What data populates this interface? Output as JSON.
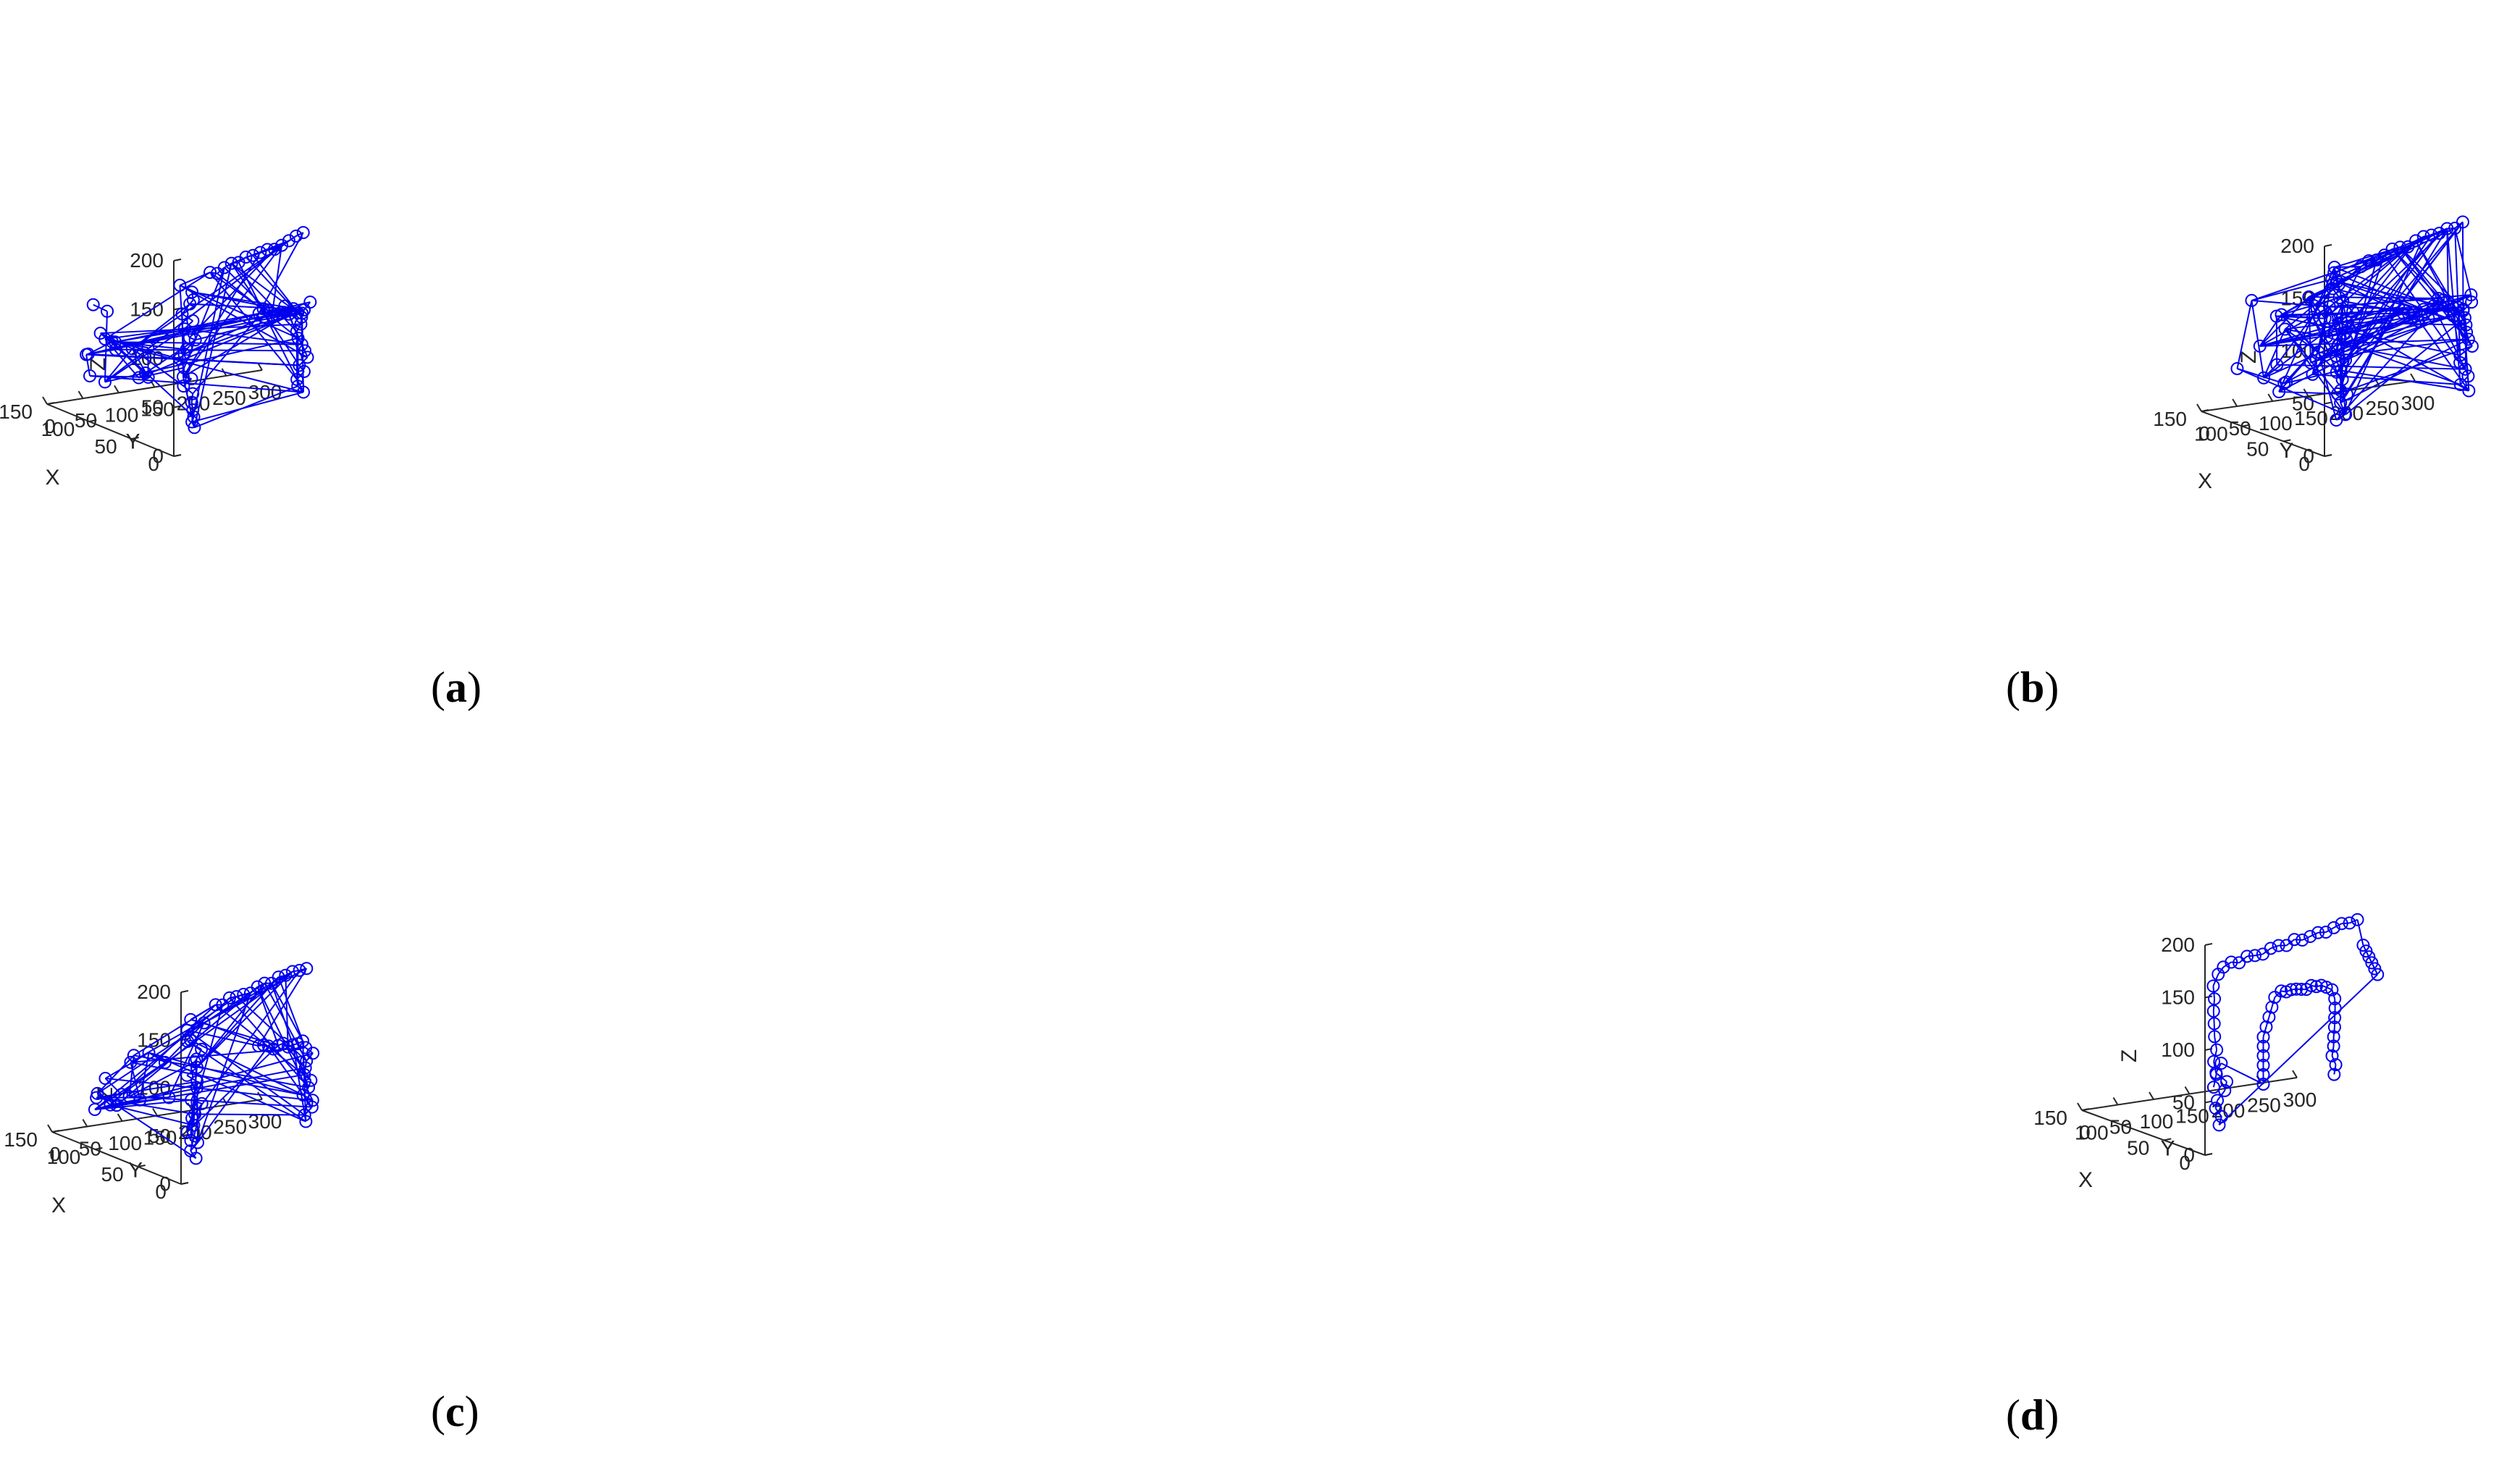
{
  "style": {
    "line_color": "#0000ee",
    "axis_color": "#262626",
    "background": "#ffffff"
  },
  "panels": [
    {
      "id": "a",
      "caption_open": "(",
      "caption_letter": "a",
      "caption_close": ")"
    },
    {
      "id": "b",
      "caption_open": "(",
      "caption_letter": "b",
      "caption_close": ")"
    },
    {
      "id": "c",
      "caption_open": "(",
      "caption_letter": "c",
      "caption_close": ")"
    },
    {
      "id": "d",
      "caption_open": "(",
      "caption_letter": "d",
      "caption_close": ")"
    }
  ],
  "chart_data": [
    {
      "type": "scatter",
      "subtype": "3d-line-markers",
      "panel": "a",
      "marker": "circle",
      "xlabel": "X",
      "ylabel": "Y",
      "zlabel": "Z",
      "xlim": [
        0,
        150
      ],
      "ylim": [
        0,
        300
      ],
      "zlim": [
        0,
        200
      ],
      "xticks": [
        0,
        50,
        100,
        150
      ],
      "yticks": [
        0,
        50,
        100,
        150,
        200,
        250,
        300
      ],
      "zticks": [
        0,
        50,
        100,
        150,
        200
      ],
      "grid": false,
      "connectivity": "dense"
    },
    {
      "type": "scatter",
      "subtype": "3d-line-markers",
      "panel": "b",
      "marker": "circle",
      "xlabel": "X",
      "ylabel": "Y",
      "zlabel": "Z",
      "xlim": [
        0,
        150
      ],
      "ylim": [
        0,
        300
      ],
      "zlim": [
        0,
        200
      ],
      "xticks": [
        0,
        50,
        100,
        150
      ],
      "yticks": [
        0,
        50,
        100,
        150,
        200,
        250,
        300
      ],
      "zticks": [
        0,
        50,
        100,
        150,
        200
      ],
      "grid": false,
      "connectivity": "very-dense"
    },
    {
      "type": "scatter",
      "subtype": "3d-line-markers",
      "panel": "c",
      "marker": "circle",
      "xlabel": "X",
      "ylabel": "Y",
      "zlabel": "Z",
      "xlim": [
        0,
        150
      ],
      "ylim": [
        0,
        300
      ],
      "zlim": [
        0,
        200
      ],
      "xticks": [
        0,
        50,
        100,
        150
      ],
      "yticks": [
        0,
        50,
        100,
        150,
        200,
        250,
        300
      ],
      "zticks": [
        0,
        50,
        100,
        150,
        200
      ],
      "grid": false,
      "connectivity": "dense"
    },
    {
      "type": "scatter",
      "subtype": "3d-line-markers",
      "panel": "d",
      "marker": "circle",
      "xlabel": "X",
      "ylabel": "Y",
      "zlabel": "Z",
      "xlim": [
        0,
        150
      ],
      "ylim": [
        0,
        300
      ],
      "zlim": [
        0,
        200
      ],
      "xticks": [
        0,
        50,
        100,
        150
      ],
      "yticks": [
        0,
        50,
        100,
        150,
        200,
        250,
        300
      ],
      "zticks": [
        0,
        50,
        100,
        150,
        200
      ],
      "grid": false,
      "connectivity": "path"
    }
  ]
}
